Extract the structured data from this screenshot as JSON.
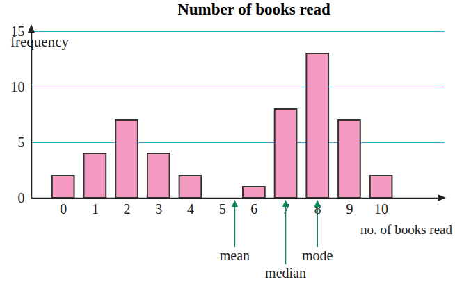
{
  "chart_data": {
    "type": "bar",
    "title": "Number of books read",
    "x_label": "no. of books read",
    "y_label": "frequency",
    "x": [
      0,
      1,
      2,
      3,
      4,
      5,
      6,
      7,
      8,
      9,
      10
    ],
    "values": [
      2,
      4,
      7,
      4,
      2,
      0,
      1,
      8,
      13,
      7,
      2
    ],
    "color": "#f49ac1",
    "xlim": [
      -1,
      12
    ],
    "ylim": [
      0,
      15
    ],
    "xticks": [
      0,
      1,
      2,
      3,
      4,
      5,
      6,
      7,
      8,
      9,
      10
    ],
    "yticks": [
      0,
      5,
      10,
      15
    ],
    "grid": true,
    "annotations": [
      {
        "text": "mean",
        "x": 5.4
      },
      {
        "text": "median",
        "x": 7
      },
      {
        "text": "mode",
        "x": 8
      }
    ]
  }
}
